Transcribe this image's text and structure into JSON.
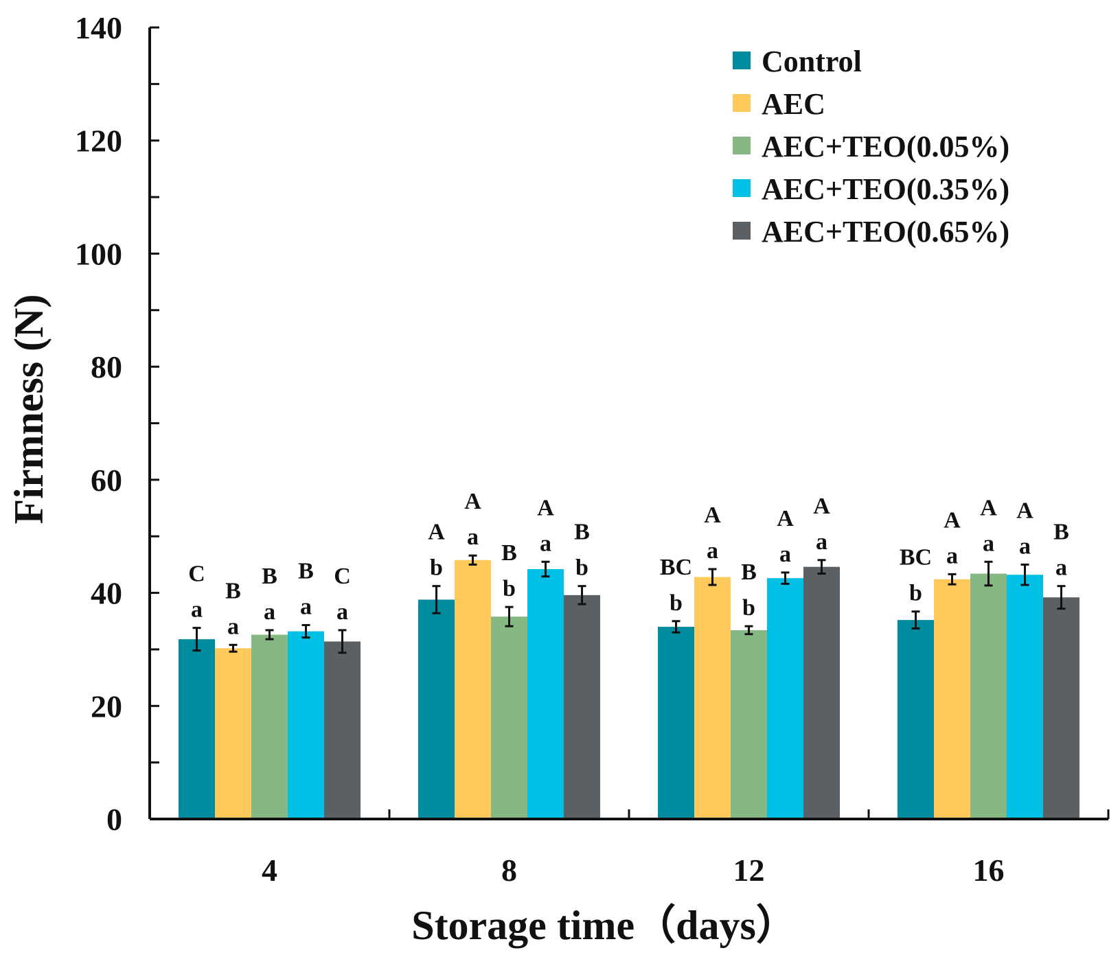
{
  "chart_data": {
    "type": "bar",
    "title": "",
    "xlabel": "Storage time（days）",
    "ylabel": "Firmness (N)",
    "ylim": [
      0,
      140
    ],
    "yticks": [
      0,
      20,
      40,
      60,
      80,
      100,
      120,
      140
    ],
    "categories": [
      "4",
      "8",
      "12",
      "16"
    ],
    "legend_position": "top-right",
    "series": [
      {
        "name": "Control",
        "color": "#008C9E",
        "values": [
          31.8,
          38.8,
          34.0,
          35.2
        ],
        "errors": [
          2.0,
          2.4,
          1.0,
          1.5
        ],
        "upper_letters": [
          "C",
          "A",
          "BC",
          "BC"
        ],
        "lower_letters": [
          "a",
          "b",
          "b",
          "b"
        ]
      },
      {
        "name": "AEC",
        "color": "#FFCA5B",
        "values": [
          30.2,
          45.8,
          42.8,
          42.4
        ],
        "errors": [
          0.6,
          0.8,
          1.4,
          0.9
        ],
        "upper_letters": [
          "B",
          "A",
          "A",
          "A"
        ],
        "lower_letters": [
          "a",
          "a",
          "a",
          "a"
        ]
      },
      {
        "name": "AEC+TEO(0.05%)",
        "color": "#85B882",
        "values": [
          32.6,
          35.8,
          33.4,
          43.4
        ],
        "errors": [
          0.8,
          1.7,
          0.7,
          2.1
        ],
        "upper_letters": [
          "B",
          "B",
          "B",
          "A"
        ],
        "lower_letters": [
          "a",
          "b",
          "b",
          "a"
        ]
      },
      {
        "name": "AEC+TEO(0.35%)",
        "color": "#00C0E6",
        "values": [
          33.2,
          44.2,
          42.6,
          43.2
        ],
        "errors": [
          1.1,
          1.3,
          1.0,
          1.8
        ],
        "upper_letters": [
          "B",
          "A",
          "A",
          "A"
        ],
        "lower_letters": [
          "a",
          "a",
          "a",
          "a"
        ]
      },
      {
        "name": "AEC+TEO(0.65%)",
        "color": "#5B6064",
        "values": [
          31.4,
          39.6,
          44.6,
          39.2
        ],
        "errors": [
          2.0,
          1.6,
          1.2,
          2.0
        ],
        "upper_letters": [
          "C",
          "B",
          "A",
          "B"
        ],
        "lower_letters": [
          "a",
          "b",
          "a",
          "a"
        ]
      }
    ]
  }
}
